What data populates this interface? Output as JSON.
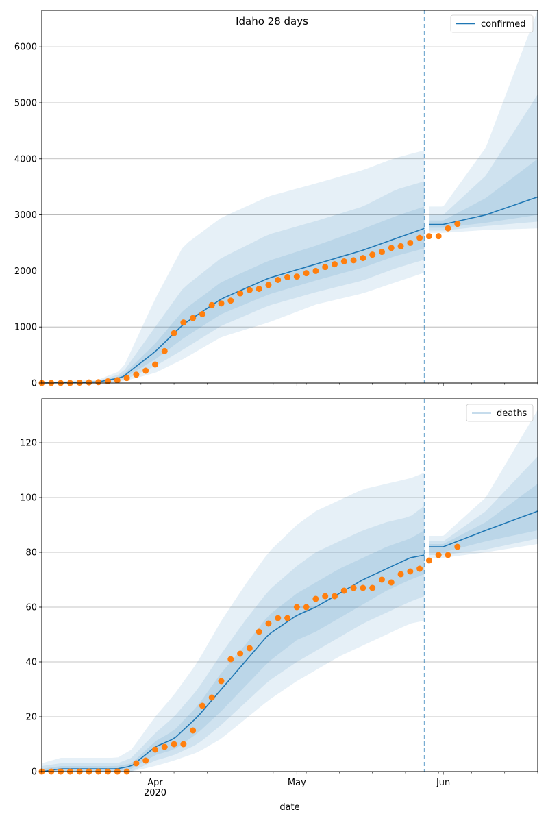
{
  "title": "Idaho 28 days",
  "colors": {
    "model": "#1f77b4",
    "observed": "#ff7f0e",
    "band": "#1f77b4",
    "split_line": "#1f77b4",
    "grid": "#b0b0b0",
    "axis": "#000000"
  },
  "chart_data": [
    {
      "type": "line",
      "title": "Idaho 28 days",
      "xlabel": "",
      "ylabel": "",
      "legend": "top-right",
      "legend_entries": [
        "confirmed"
      ],
      "grid": "horizontal",
      "xlim": [
        "2020-03-08",
        "2020-06-21"
      ],
      "ylim": [
        0,
        6650
      ],
      "yticks": [
        0,
        1000,
        2000,
        3000,
        4000,
        5000,
        6000
      ],
      "xticks_major": [
        {
          "date": "2020-04-01",
          "label": "Apr",
          "sub": "2020"
        },
        {
          "date": "2020-05-01",
          "label": "May",
          "sub": ""
        },
        {
          "date": "2020-06-01",
          "label": "Jun",
          "sub": ""
        }
      ],
      "split_date": "2020-05-28",
      "series": [
        {
          "name": "confirmed",
          "kind": "model",
          "x": [
            "2020-03-08",
            "2020-03-20",
            "2020-03-25",
            "2020-04-01",
            "2020-04-07",
            "2020-04-15",
            "2020-04-25",
            "2020-05-05",
            "2020-05-15",
            "2020-05-22",
            "2020-05-28",
            "2020-06-01",
            "2020-06-10",
            "2020-06-21"
          ],
          "y": [
            0,
            20,
            100,
            560,
            1050,
            1500,
            1870,
            2120,
            2370,
            2580,
            2760,
            2830,
            3000,
            3320
          ]
        },
        {
          "name": "band outer upper",
          "kind": "band",
          "x": [
            "2020-03-08",
            "2020-03-20",
            "2020-03-25",
            "2020-04-01",
            "2020-04-07",
            "2020-04-15",
            "2020-04-25",
            "2020-05-05",
            "2020-05-15",
            "2020-05-22",
            "2020-05-28",
            "2020-06-01",
            "2020-06-10",
            "2020-06-21"
          ],
          "y": [
            15,
            60,
            230,
            1500,
            2450,
            2950,
            3330,
            3560,
            3800,
            4020,
            4150,
            3150,
            4200,
            6650
          ]
        },
        {
          "name": "band mid upper",
          "kind": "band",
          "x": [
            "2020-03-08",
            "2020-03-20",
            "2020-03-25",
            "2020-04-01",
            "2020-04-07",
            "2020-04-15",
            "2020-04-25",
            "2020-05-05",
            "2020-05-15",
            "2020-05-22",
            "2020-05-28",
            "2020-06-01",
            "2020-06-10",
            "2020-06-21"
          ],
          "y": [
            10,
            40,
            170,
            1000,
            1700,
            2230,
            2650,
            2890,
            3150,
            3450,
            3600,
            3000,
            3700,
            5150
          ]
        },
        {
          "name": "band inner upper",
          "kind": "band",
          "x": [
            "2020-03-08",
            "2020-03-20",
            "2020-03-25",
            "2020-04-01",
            "2020-04-07",
            "2020-04-15",
            "2020-04-25",
            "2020-05-05",
            "2020-05-15",
            "2020-05-22",
            "2020-05-28",
            "2020-06-01",
            "2020-06-10",
            "2020-06-21"
          ],
          "y": [
            5,
            30,
            130,
            700,
            1300,
            1800,
            2180,
            2450,
            2750,
            2980,
            3150,
            2900,
            3300,
            4000
          ]
        },
        {
          "name": "band inner lower",
          "kind": "band",
          "x": [
            "2020-03-08",
            "2020-03-20",
            "2020-03-25",
            "2020-04-01",
            "2020-04-07",
            "2020-04-15",
            "2020-04-25",
            "2020-05-05",
            "2020-05-15",
            "2020-05-22",
            "2020-05-28",
            "2020-06-01",
            "2020-06-10",
            "2020-06-21"
          ],
          "y": [
            0,
            15,
            70,
            420,
            800,
            1230,
            1580,
            1830,
            2060,
            2270,
            2400,
            2770,
            2860,
            3000
          ]
        },
        {
          "name": "band mid lower",
          "kind": "band",
          "x": [
            "2020-03-08",
            "2020-03-20",
            "2020-03-25",
            "2020-04-01",
            "2020-04-07",
            "2020-04-15",
            "2020-04-25",
            "2020-05-05",
            "2020-05-15",
            "2020-05-22",
            "2020-05-28",
            "2020-06-01",
            "2020-06-10",
            "2020-06-21"
          ],
          "y": [
            0,
            8,
            40,
            300,
            600,
            1020,
            1380,
            1620,
            1830,
            2050,
            2200,
            2720,
            2800,
            2880
          ]
        },
        {
          "name": "band outer lower",
          "kind": "band",
          "x": [
            "2020-03-08",
            "2020-03-20",
            "2020-03-25",
            "2020-04-01",
            "2020-04-07",
            "2020-04-15",
            "2020-04-25",
            "2020-05-05",
            "2020-05-15",
            "2020-05-22",
            "2020-05-28",
            "2020-06-01",
            "2020-06-10",
            "2020-06-21"
          ],
          "y": [
            0,
            4,
            25,
            180,
            430,
            820,
            1080,
            1400,
            1600,
            1800,
            1970,
            2680,
            2730,
            2760
          ]
        },
        {
          "name": "observed",
          "kind": "observed",
          "x": [
            "2020-03-08",
            "2020-03-10",
            "2020-03-12",
            "2020-03-14",
            "2020-03-16",
            "2020-03-18",
            "2020-03-20",
            "2020-03-22",
            "2020-03-24",
            "2020-03-26",
            "2020-03-28",
            "2020-03-30",
            "2020-04-01",
            "2020-04-03",
            "2020-04-05",
            "2020-04-07",
            "2020-04-09",
            "2020-04-11",
            "2020-04-13",
            "2020-04-15",
            "2020-04-17",
            "2020-04-19",
            "2020-04-21",
            "2020-04-23",
            "2020-04-25",
            "2020-04-27",
            "2020-04-29",
            "2020-05-01",
            "2020-05-03",
            "2020-05-05",
            "2020-05-07",
            "2020-05-09",
            "2020-05-11",
            "2020-05-13",
            "2020-05-15",
            "2020-05-17",
            "2020-05-19",
            "2020-05-21",
            "2020-05-23",
            "2020-05-25",
            "2020-05-27",
            "2020-05-29",
            "2020-05-31",
            "2020-06-02",
            "2020-06-04"
          ],
          "y": [
            0,
            0,
            0,
            0,
            5,
            10,
            15,
            30,
            50,
            90,
            150,
            220,
            330,
            570,
            890,
            1080,
            1160,
            1230,
            1390,
            1420,
            1470,
            1600,
            1660,
            1680,
            1750,
            1840,
            1890,
            1900,
            1960,
            2000,
            2070,
            2120,
            2170,
            2190,
            2230,
            2290,
            2340,
            2410,
            2440,
            2500,
            2590,
            2620,
            2620,
            2760,
            2840
          ]
        }
      ]
    },
    {
      "type": "line",
      "title": "",
      "xlabel": "date",
      "ylabel": "",
      "legend": "top-right",
      "legend_entries": [
        "deaths"
      ],
      "grid": "horizontal",
      "xlim": [
        "2020-03-08",
        "2020-06-21"
      ],
      "ylim": [
        0,
        136
      ],
      "yticks": [
        0,
        20,
        40,
        60,
        80,
        100,
        120
      ],
      "xticks_major": [
        {
          "date": "2020-04-01",
          "label": "Apr",
          "sub": "2020"
        },
        {
          "date": "2020-05-01",
          "label": "May",
          "sub": ""
        },
        {
          "date": "2020-06-01",
          "label": "Jun",
          "sub": ""
        }
      ],
      "split_date": "2020-05-28",
      "series": [
        {
          "name": "deaths",
          "kind": "model",
          "x": [
            "2020-03-08",
            "2020-03-12",
            "2020-03-24",
            "2020-03-27",
            "2020-04-01",
            "2020-04-05",
            "2020-04-10",
            "2020-04-15",
            "2020-04-20",
            "2020-04-25",
            "2020-05-01",
            "2020-05-05",
            "2020-05-10",
            "2020-05-15",
            "2020-05-20",
            "2020-05-25",
            "2020-05-28",
            "2020-06-01",
            "2020-06-10",
            "2020-06-21"
          ],
          "y": [
            0,
            1,
            1,
            2,
            9,
            12,
            20,
            30,
            40,
            50,
            57,
            60,
            65,
            70,
            74,
            78,
            79,
            82,
            88,
            95
          ]
        },
        {
          "name": "band outer upper",
          "kind": "band",
          "x": [
            "2020-03-08",
            "2020-03-12",
            "2020-03-24",
            "2020-03-27",
            "2020-04-01",
            "2020-04-05",
            "2020-04-10",
            "2020-04-15",
            "2020-04-20",
            "2020-04-25",
            "2020-05-01",
            "2020-05-05",
            "2020-05-10",
            "2020-05-15",
            "2020-05-20",
            "2020-05-25",
            "2020-05-28",
            "2020-06-01",
            "2020-06-10",
            "2020-06-21"
          ],
          "y": [
            3,
            5,
            5,
            8,
            20,
            28,
            40,
            55,
            68,
            80,
            90,
            95,
            99,
            103,
            105,
            107,
            109,
            86,
            100,
            132
          ]
        },
        {
          "name": "band mid upper",
          "kind": "band",
          "x": [
            "2020-03-08",
            "2020-03-12",
            "2020-03-24",
            "2020-03-27",
            "2020-04-01",
            "2020-04-05",
            "2020-04-10",
            "2020-04-15",
            "2020-04-20",
            "2020-04-25",
            "2020-05-01",
            "2020-05-05",
            "2020-05-10",
            "2020-05-15",
            "2020-05-20",
            "2020-05-25",
            "2020-05-28",
            "2020-06-01",
            "2020-06-10",
            "2020-06-21"
          ],
          "y": [
            2,
            3,
            3,
            5,
            14,
            20,
            30,
            43,
            55,
            66,
            75,
            80,
            84,
            88,
            91,
            93,
            97,
            84,
            95,
            115
          ]
        },
        {
          "name": "band inner upper",
          "kind": "band",
          "x": [
            "2020-03-08",
            "2020-03-12",
            "2020-03-24",
            "2020-03-27",
            "2020-04-01",
            "2020-04-05",
            "2020-04-10",
            "2020-04-15",
            "2020-04-20",
            "2020-04-25",
            "2020-05-01",
            "2020-05-05",
            "2020-05-10",
            "2020-05-15",
            "2020-05-20",
            "2020-05-25",
            "2020-05-28",
            "2020-06-01",
            "2020-06-10",
            "2020-06-21"
          ],
          "y": [
            1,
            2,
            2,
            3,
            11,
            15,
            24,
            36,
            46,
            57,
            65,
            69,
            74,
            78,
            82,
            85,
            88,
            83,
            91,
            105
          ]
        },
        {
          "name": "band inner lower",
          "kind": "band",
          "x": [
            "2020-03-08",
            "2020-03-12",
            "2020-03-24",
            "2020-03-27",
            "2020-04-01",
            "2020-04-05",
            "2020-04-10",
            "2020-04-15",
            "2020-04-20",
            "2020-04-25",
            "2020-05-01",
            "2020-05-05",
            "2020-05-10",
            "2020-05-15",
            "2020-05-20",
            "2020-05-25",
            "2020-05-28",
            "2020-06-01",
            "2020-06-10",
            "2020-06-21"
          ],
          "y": [
            0,
            0,
            0,
            1,
            6,
            8,
            14,
            22,
            31,
            40,
            48,
            51,
            56,
            61,
            66,
            70,
            72,
            80,
            84,
            88
          ]
        },
        {
          "name": "band mid lower",
          "kind": "band",
          "x": [
            "2020-03-08",
            "2020-03-12",
            "2020-03-24",
            "2020-03-27",
            "2020-04-01",
            "2020-04-05",
            "2020-04-10",
            "2020-04-15",
            "2020-04-20",
            "2020-04-25",
            "2020-05-01",
            "2020-05-05",
            "2020-05-10",
            "2020-05-15",
            "2020-05-20",
            "2020-05-25",
            "2020-05-28",
            "2020-06-01",
            "2020-06-10",
            "2020-06-21"
          ],
          "y": [
            0,
            0,
            0,
            0,
            4,
            6,
            10,
            17,
            25,
            33,
            40,
            44,
            49,
            54,
            58,
            62,
            64,
            79,
            81,
            85
          ]
        },
        {
          "name": "band outer lower",
          "kind": "band",
          "x": [
            "2020-03-08",
            "2020-03-12",
            "2020-03-24",
            "2020-03-27",
            "2020-04-01",
            "2020-04-05",
            "2020-04-10",
            "2020-04-15",
            "2020-04-20",
            "2020-04-25",
            "2020-05-01",
            "2020-05-05",
            "2020-05-10",
            "2020-05-15",
            "2020-05-20",
            "2020-05-25",
            "2020-05-28",
            "2020-06-01",
            "2020-06-10",
            "2020-06-21"
          ],
          "y": [
            0,
            0,
            0,
            0,
            2,
            4,
            7,
            12,
            19,
            26,
            33,
            37,
            42,
            46,
            50,
            54,
            55,
            78,
            80,
            83
          ]
        },
        {
          "name": "observed",
          "kind": "observed",
          "x": [
            "2020-03-08",
            "2020-03-10",
            "2020-03-12",
            "2020-03-14",
            "2020-03-16",
            "2020-03-18",
            "2020-03-20",
            "2020-03-22",
            "2020-03-24",
            "2020-03-26",
            "2020-03-28",
            "2020-03-30",
            "2020-04-01",
            "2020-04-03",
            "2020-04-05",
            "2020-04-07",
            "2020-04-09",
            "2020-04-11",
            "2020-04-13",
            "2020-04-15",
            "2020-04-17",
            "2020-04-19",
            "2020-04-21",
            "2020-04-23",
            "2020-04-25",
            "2020-04-27",
            "2020-04-29",
            "2020-05-01",
            "2020-05-03",
            "2020-05-05",
            "2020-05-07",
            "2020-05-09",
            "2020-05-11",
            "2020-05-13",
            "2020-05-15",
            "2020-05-17",
            "2020-05-19",
            "2020-05-21",
            "2020-05-23",
            "2020-05-25",
            "2020-05-27",
            "2020-05-29",
            "2020-05-31",
            "2020-06-02",
            "2020-06-04"
          ],
          "y": [
            0,
            0,
            0,
            0,
            0,
            0,
            0,
            0,
            0,
            0,
            3,
            4,
            8,
            9,
            10,
            10,
            15,
            24,
            27,
            33,
            41,
            43,
            45,
            51,
            54,
            56,
            56,
            60,
            60,
            63,
            64,
            64,
            66,
            67,
            67,
            67,
            70,
            69,
            72,
            73,
            74,
            77,
            79,
            79,
            82
          ]
        }
      ]
    }
  ]
}
